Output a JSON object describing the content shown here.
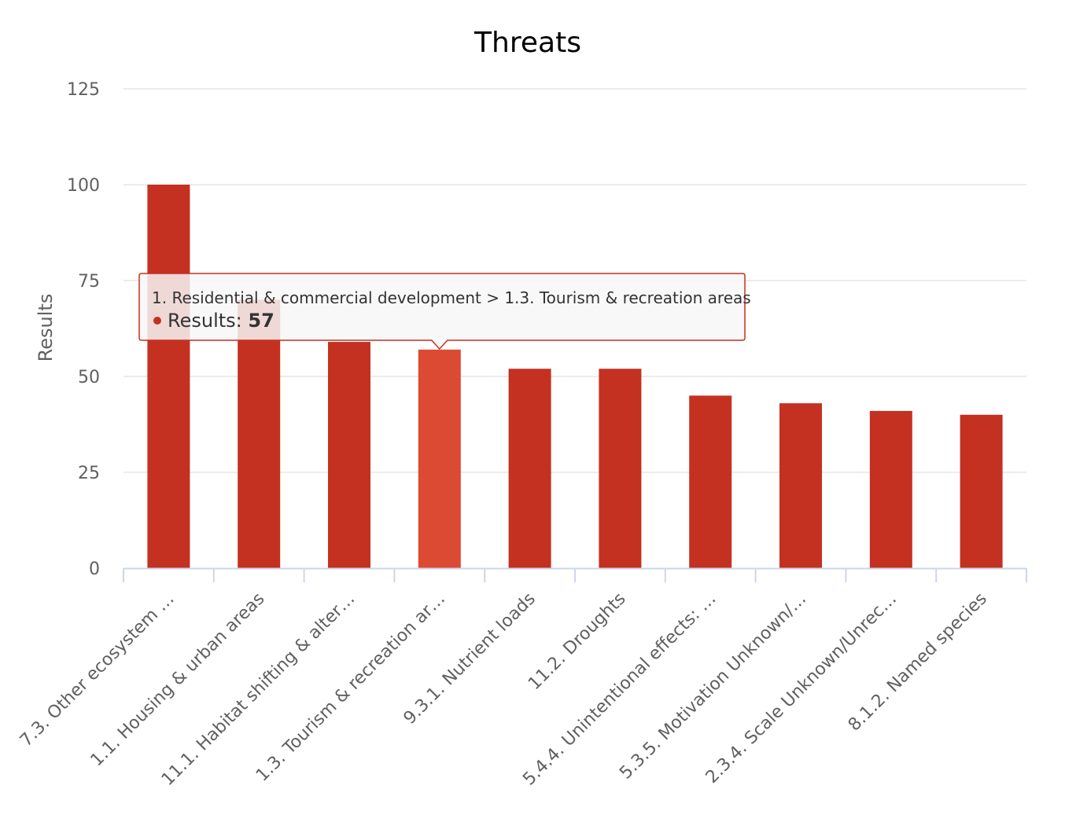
{
  "chart_data": {
    "type": "bar",
    "title": "Threats",
    "xlabel": "",
    "ylabel": "Results",
    "ylim": [
      0,
      125
    ],
    "yticks": [
      "0",
      "25",
      "50",
      "75",
      "100",
      "125"
    ],
    "grid": true,
    "categories": [
      "7.3. Other ecosystem …",
      "1.1. Housing & urban areas",
      "11.1. Habitat shifting & alter…",
      "1.3. Tourism & recreation ar…",
      "9.3.1. Nutrient loads",
      "11.2. Droughts",
      "5.4.4. Unintentional effects: …",
      "5.3.5. Motivation Unknown/…",
      "2.3.4. Scale Unknown/Unrec…",
      "8.1.2. Named species"
    ],
    "series": [
      {
        "name": "Results",
        "values": [
          100,
          70,
          59,
          57,
          52,
          52,
          45,
          43,
          41,
          40
        ]
      }
    ],
    "highlighted_index": 3,
    "tooltip": {
      "header": "1. Residential & commercial development > 1.3. Tourism & recreation areas",
      "series_label": "Results: ",
      "value": "57"
    },
    "colors": {
      "bar": "#c43120",
      "bar_hover": "#dd4a33",
      "grid": "#e6e6e6",
      "axis": "#ccd6eb",
      "tooltip_border": "#c43120",
      "tooltip_bg": "#f7f7f7"
    }
  }
}
